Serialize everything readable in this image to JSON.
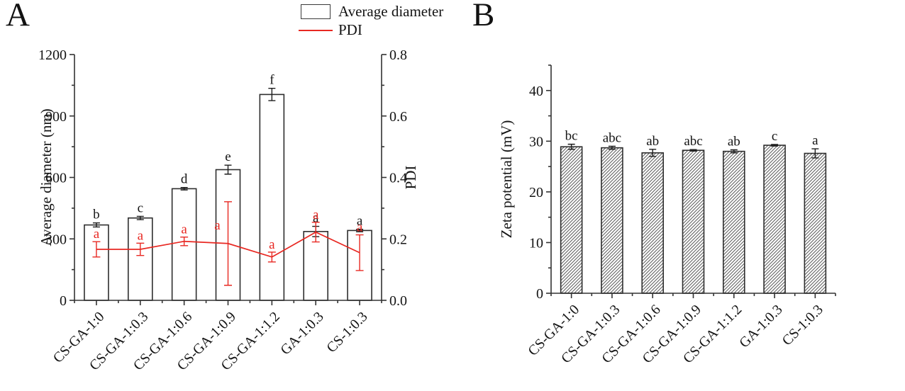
{
  "panels": [
    {
      "label": "A",
      "legend": [
        {
          "swatch": "open-bar",
          "label": "Average diameter"
        },
        {
          "swatch": "red-line",
          "label": "PDI"
        }
      ]
    },
    {
      "label": "B"
    }
  ],
  "colors": {
    "pdi_red": "#e82822",
    "bar_stroke": "#2e2e2e",
    "axis": "#333333",
    "text": "#141414",
    "hatch": "#4a4a4a"
  },
  "chart_data": [
    {
      "type": "bar+line",
      "categories": [
        "CS-GA-1:0",
        "CS-GA-1:0.3",
        "CS-GA-1:0.6",
        "CS-GA-1:0.9",
        "CS-GA-1:1.2",
        "GA-1:0.3",
        "CS-1:0.3"
      ],
      "series": [
        {
          "name": "Average diameter",
          "type": "bar",
          "axis": "left",
          "values": [
            368,
            402,
            545,
            638,
            1005,
            336,
            341
          ],
          "errors": [
            10,
            8,
            6,
            22,
            30,
            25,
            6
          ],
          "sig_letters": [
            "b",
            "c",
            "d",
            "e",
            "f",
            "a",
            "a"
          ],
          "fill": "#ffffff",
          "hatch": false
        },
        {
          "name": "PDI",
          "type": "line",
          "axis": "right",
          "values": [
            0.166,
            0.166,
            0.192,
            0.185,
            0.141,
            0.222,
            0.155
          ],
          "errors": [
            0.025,
            0.02,
            0.014,
            0.136,
            0.016,
            0.032,
            0.058
          ],
          "sig_letters": [
            "a",
            "a",
            "a",
            "a",
            "a",
            "a",
            "a"
          ],
          "color": "#e82822"
        }
      ],
      "left_axis": {
        "label": "Average diameter (nm)",
        "min": 0,
        "max": 1200,
        "ticks": [
          0,
          300,
          600,
          900,
          1200
        ],
        "tick_labels": [
          "0",
          "300",
          "600",
          "900",
          "1200"
        ],
        "minor_ticks": [
          150,
          450,
          750,
          1050
        ]
      },
      "right_axis": {
        "label": "PDI",
        "min": 0,
        "max": 0.8,
        "ticks": [
          0,
          0.2,
          0.4,
          0.6,
          0.8
        ],
        "tick_labels": [
          "0.0",
          "0.2",
          "0.4",
          "0.6",
          "0.8"
        ],
        "minor_ticks": [
          0.1,
          0.3,
          0.5,
          0.7
        ]
      },
      "legend_position": "top-right",
      "grid": false
    },
    {
      "type": "bar",
      "categories": [
        "CS-GA-1:0",
        "CS-GA-1:0.3",
        "CS-GA-1:0.6",
        "CS-GA-1:0.9",
        "CS-GA-1:1.2",
        "GA-1:0.3",
        "CS-1:0.3"
      ],
      "series": [
        {
          "name": "Zeta potential",
          "type": "bar",
          "axis": "left",
          "values": [
            28.9,
            28.7,
            27.7,
            28.2,
            28.0,
            29.2,
            27.6
          ],
          "errors": [
            0.5,
            0.3,
            0.7,
            0.15,
            0.3,
            0.15,
            0.9
          ],
          "sig_letters": [
            "bc",
            "abc",
            "ab",
            "abc",
            "ab",
            "c",
            "a"
          ],
          "fill": "#ffffff",
          "hatch": true
        }
      ],
      "left_axis": {
        "label": "Zeta potential (mV)",
        "min": 0,
        "max": 45,
        "ticks": [
          0,
          10,
          20,
          30,
          40
        ],
        "tick_labels": [
          "0",
          "10",
          "20",
          "30",
          "40"
        ],
        "minor_ticks": [
          5,
          15,
          25,
          35,
          45
        ]
      },
      "grid": false
    }
  ]
}
